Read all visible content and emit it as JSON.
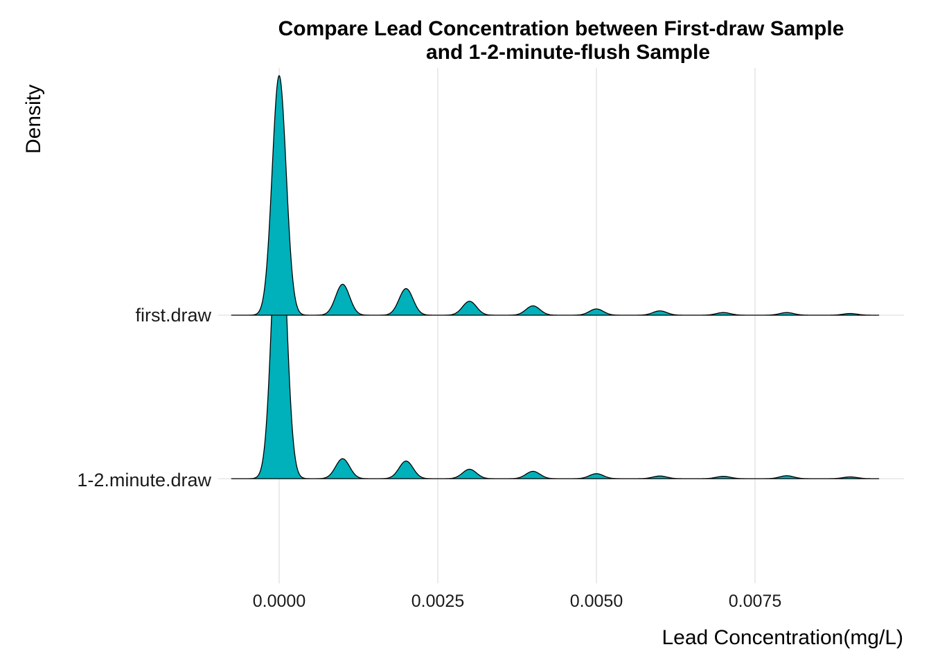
{
  "chart_data": {
    "type": "area",
    "subtype": "ridgeline density",
    "title_lines": [
      "Compare Lead Concentration between First-draw Sample",
      "and 1-2-minute-flush Sample"
    ],
    "xlabel": "Lead Concentration(mg/L)",
    "ylabel": "Density",
    "xlim": [
      -0.0018,
      0.0098
    ],
    "x_ticks": [
      0.0,
      0.0025,
      0.005,
      0.0075
    ],
    "x_tick_labels": [
      "0.0000",
      "0.0025",
      "0.0050",
      "0.0075"
    ],
    "grid": "vertical major gridlines",
    "legend": "none",
    "fill_color": "#00B0BA",
    "line_color": "#000000",
    "series": [
      {
        "name": "1-2.minute.draw",
        "x": [
          0.0,
          0.001,
          0.002,
          0.003,
          0.004,
          0.005,
          0.006,
          0.007,
          0.008,
          0.009
        ],
        "relative_density": [
          1.0,
          0.068,
          0.06,
          0.032,
          0.025,
          0.017,
          0.009,
          0.008,
          0.01,
          0.006
        ]
      },
      {
        "name": "first.draw",
        "x": [
          0.0,
          0.001,
          0.002,
          0.003,
          0.004,
          0.005,
          0.006,
          0.007,
          0.008,
          0.009
        ],
        "relative_density": [
          1.0,
          0.129,
          0.111,
          0.058,
          0.039,
          0.026,
          0.018,
          0.011,
          0.011,
          0.007
        ]
      }
    ]
  }
}
